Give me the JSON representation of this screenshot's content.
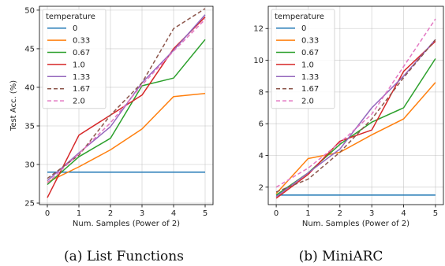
{
  "chart_data": [
    {
      "type": "line",
      "caption": "(a)  List Functions",
      "xlabel": "Num. Samples (Power of 2)",
      "ylabel": "Test Acc. (%)",
      "x": [
        0,
        1,
        2,
        3,
        4,
        5
      ],
      "xlim": [
        -0.25,
        5.25
      ],
      "ylim": [
        24.8,
        50.5
      ],
      "yticks": [
        25,
        30,
        35,
        40,
        45,
        50
      ],
      "grid": true,
      "legend": {
        "title": "temperature",
        "position": "top-left"
      },
      "series": [
        {
          "name": "0",
          "color": "#1f77b4",
          "dash": "",
          "values": [
            29.0,
            29.0,
            29.0,
            29.0,
            29.0,
            29.0
          ]
        },
        {
          "name": "0.33",
          "color": "#ff7f0e",
          "dash": "",
          "values": [
            27.7,
            29.7,
            31.9,
            34.6,
            38.8,
            39.2
          ]
        },
        {
          "name": "0.67",
          "color": "#2ca02c",
          "dash": "",
          "values": [
            27.4,
            31.0,
            33.4,
            40.2,
            41.2,
            46.2
          ]
        },
        {
          "name": "1.0",
          "color": "#d62728",
          "dash": "",
          "values": [
            25.7,
            33.8,
            36.4,
            39.0,
            45.0,
            49.1
          ]
        },
        {
          "name": "1.33",
          "color": "#9467bd",
          "dash": "",
          "values": [
            27.9,
            31.5,
            34.9,
            40.6,
            44.8,
            49.4
          ]
        },
        {
          "name": "1.67",
          "color": "#8c564b",
          "dash": "5,3",
          "values": [
            28.2,
            31.2,
            36.4,
            40.6,
            47.6,
            50.2
          ]
        },
        {
          "name": "2.0",
          "color": "#e377c2",
          "dash": "5,3",
          "values": [
            27.6,
            31.4,
            35.4,
            40.3,
            44.7,
            48.8
          ]
        }
      ]
    },
    {
      "type": "line",
      "caption": "(b)  MiniARC",
      "xlabel": "Num. Samples (Power of 2)",
      "ylabel": "",
      "x": [
        0,
        1,
        2,
        3,
        4,
        5
      ],
      "xlim": [
        -0.25,
        5.25
      ],
      "ylim": [
        0.9,
        13.4
      ],
      "yticks": [
        2,
        4,
        6,
        8,
        10,
        12
      ],
      "grid": true,
      "legend": {
        "title": "temperature",
        "position": "top-left"
      },
      "series": [
        {
          "name": "0",
          "color": "#1f77b4",
          "dash": "",
          "values": [
            1.5,
            1.5,
            1.5,
            1.5,
            1.5,
            1.5
          ]
        },
        {
          "name": "0.33",
          "color": "#ff7f0e",
          "dash": "",
          "values": [
            1.6,
            3.8,
            4.2,
            5.3,
            6.3,
            8.6
          ]
        },
        {
          "name": "0.67",
          "color": "#2ca02c",
          "dash": "",
          "values": [
            1.5,
            2.9,
            4.7,
            6.1,
            7.0,
            10.1
          ]
        },
        {
          "name": "1.0",
          "color": "#d62728",
          "dash": "",
          "values": [
            1.3,
            2.8,
            4.9,
            5.6,
            9.3,
            11.2
          ]
        },
        {
          "name": "1.33",
          "color": "#9467bd",
          "dash": "",
          "values": [
            1.4,
            2.9,
            4.4,
            7.0,
            9.0,
            11.3
          ]
        },
        {
          "name": "1.67",
          "color": "#8c564b",
          "dash": "5,3",
          "values": [
            1.7,
            2.5,
            4.2,
            6.3,
            8.9,
            11.3
          ]
        },
        {
          "name": "2.0",
          "color": "#e377c2",
          "dash": "5,3",
          "values": [
            2.0,
            3.2,
            4.8,
            6.6,
            9.6,
            12.6
          ]
        }
      ]
    }
  ]
}
